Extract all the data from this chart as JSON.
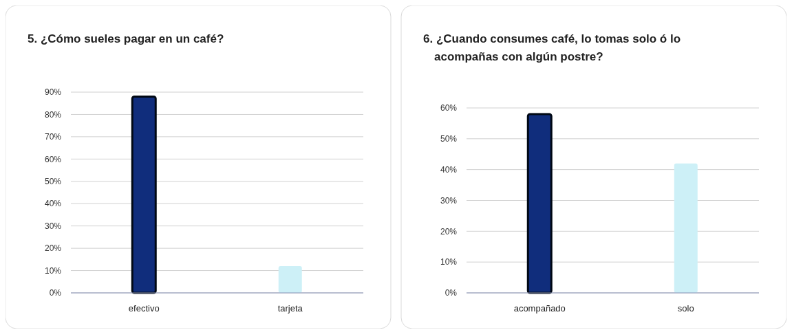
{
  "chart_data": [
    {
      "type": "bar",
      "title": "5. ¿Cómo sueles pagar en un café?",
      "categories": [
        "efectivo",
        "tarjeta"
      ],
      "values": [
        88,
        12
      ],
      "colors": [
        "#102d7c",
        "#cdf0f7"
      ],
      "ylim": [
        0,
        90
      ],
      "yticks": [
        {
          "value": 0,
          "label": "0%"
        },
        {
          "value": 10,
          "label": "10%"
        },
        {
          "value": 20,
          "label": "20%"
        },
        {
          "value": 30,
          "label": "30%"
        },
        {
          "value": 40,
          "label": "40%"
        },
        {
          "value": 50,
          "label": "50%"
        },
        {
          "value": 60,
          "label": "60%"
        },
        {
          "value": 70,
          "label": "70%"
        },
        {
          "value": 80,
          "label": "80%"
        },
        {
          "value": 90,
          "label": "90%"
        }
      ],
      "grid": "y"
    },
    {
      "type": "bar",
      "title": "6. ¿Cuando consumes café, lo tomas solo ó lo acompañas con algún postre?",
      "categories": [
        "acompañado",
        "solo"
      ],
      "values": [
        58,
        42
      ],
      "colors": [
        "#102d7c",
        "#cdf0f7"
      ],
      "ylim": [
        0,
        60
      ],
      "yticks": [
        {
          "value": 0,
          "label": "0%"
        },
        {
          "value": 10,
          "label": "10%"
        },
        {
          "value": 20,
          "label": "20%"
        },
        {
          "value": 30,
          "label": "30%"
        },
        {
          "value": 40,
          "label": "40%"
        },
        {
          "value": 50,
          "label": "50%"
        },
        {
          "value": 60,
          "label": "60%"
        }
      ],
      "grid": "y"
    }
  ]
}
